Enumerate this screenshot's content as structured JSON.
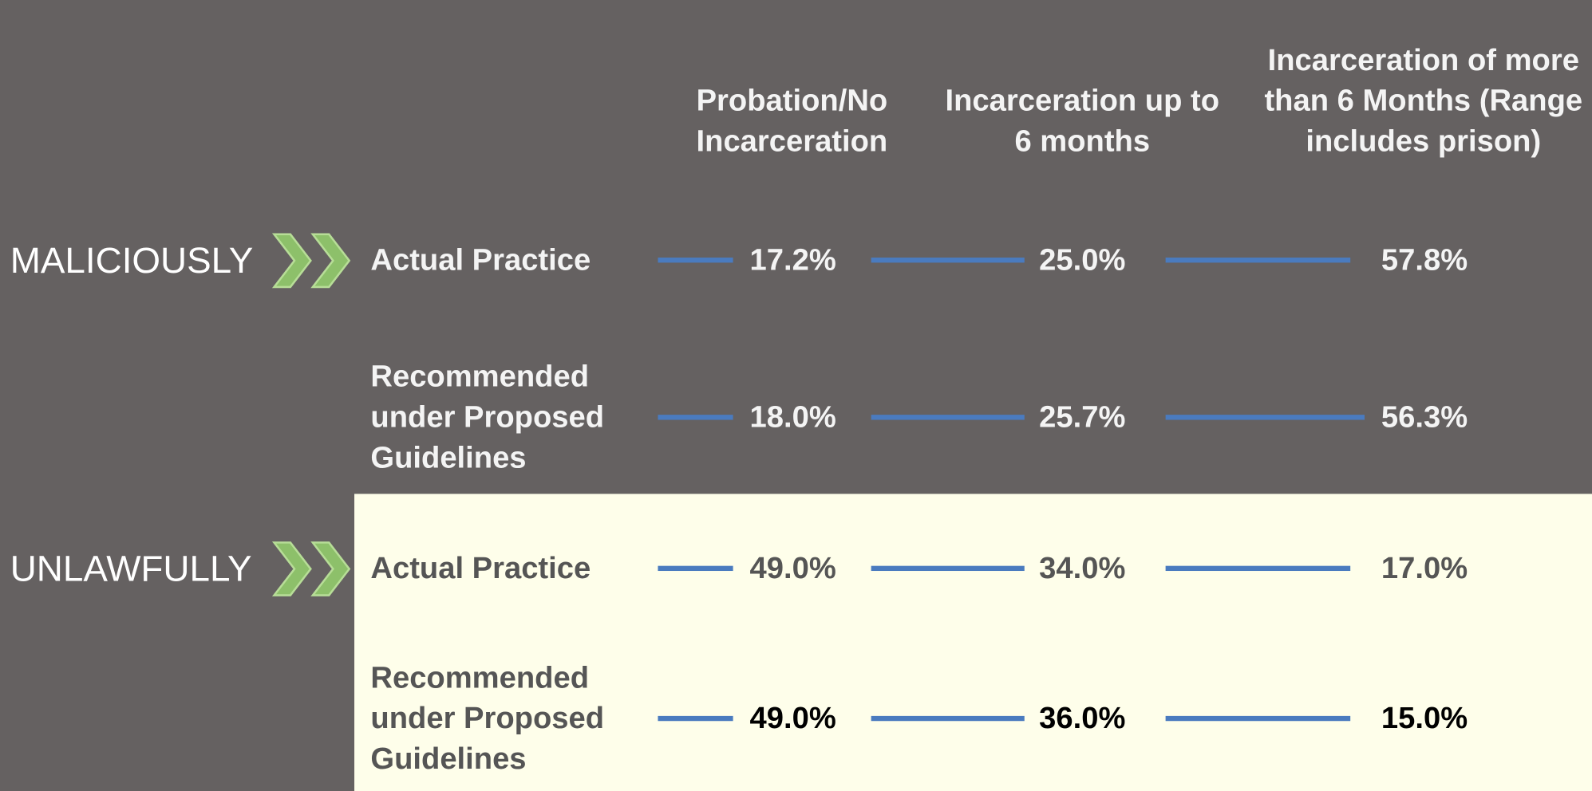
{
  "columns": [
    "Probation/No Incarceration",
    "Incarceration up to 6 months",
    "Incarceration of more than 6 Months (Range includes prison)"
  ],
  "groups": [
    {
      "label": "MALICIOUSLY",
      "rows": [
        {
          "label": "Actual Practice",
          "cells": [
            "17.2%",
            "25.0%",
            "57.8%"
          ]
        },
        {
          "label": "Recommended under Proposed Guidelines",
          "cells": [
            "18.0%",
            "25.7%",
            "56.3%"
          ]
        }
      ]
    },
    {
      "label": "UNLAWFULLY",
      "rows": [
        {
          "label": "Actual Practice",
          "cells": [
            "49.0%",
            "34.0%",
            "17.0%"
          ]
        },
        {
          "label": "Recommended under Proposed Guidelines",
          "cells": [
            "49.0%",
            "36.0%",
            "15.0%"
          ]
        }
      ]
    }
  ]
}
